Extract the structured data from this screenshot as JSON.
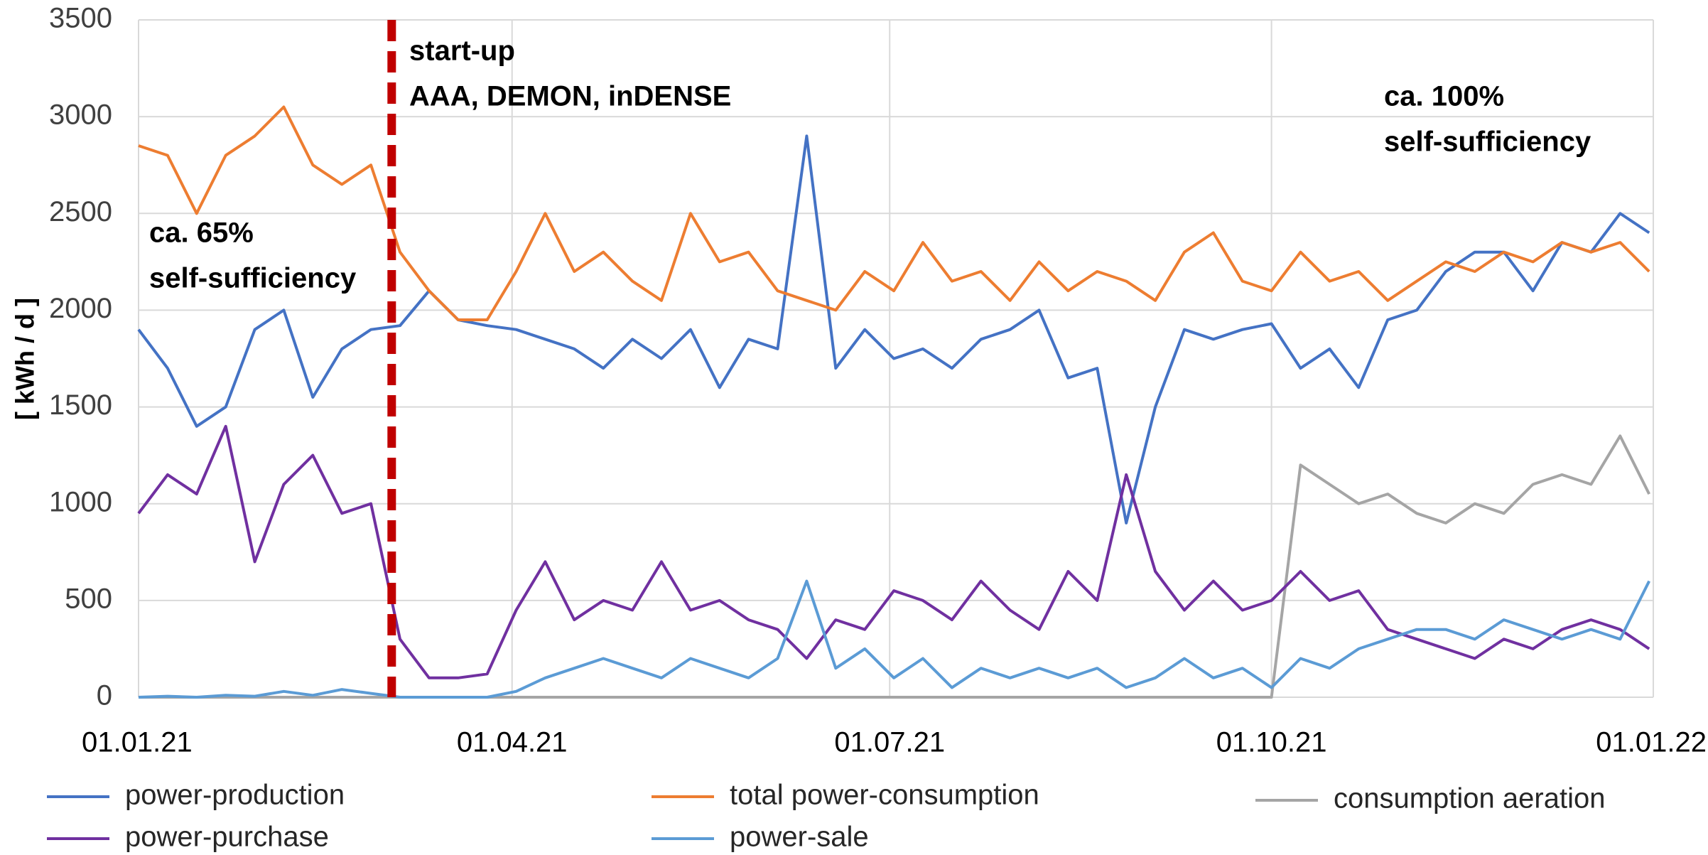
{
  "chart_data": {
    "type": "line",
    "y_label": "[ kWh / d ]",
    "annotations": [
      {
        "lines": [
          "start-up",
          "AAA, DEMON, inDENSE"
        ]
      },
      {
        "lines": [
          "ca. 65%",
          "self-sufficiency"
        ]
      },
      {
        "lines": [
          "ca. 100%",
          "self-sufficiency"
        ]
      }
    ],
    "vline": {
      "x": "03.03.21",
      "color": "#c00000"
    },
    "xlim": [
      "01.01.21",
      "01.01.22"
    ],
    "xticks": [
      "01.01.21",
      "01.04.21",
      "01.07.21",
      "01.10.21",
      "01.01.22"
    ],
    "ylim": [
      0,
      3500
    ],
    "yticks": [
      0,
      500,
      1000,
      1500,
      2000,
      2500,
      3000,
      3500
    ],
    "grid": true,
    "x": [
      "01.01.21",
      "08.01.21",
      "15.01.21",
      "22.01.21",
      "29.01.21",
      "05.02.21",
      "12.02.21",
      "19.02.21",
      "26.02.21",
      "05.03.21",
      "12.03.21",
      "19.03.21",
      "26.03.21",
      "02.04.21",
      "09.04.21",
      "16.04.21",
      "23.04.21",
      "30.04.21",
      "07.05.21",
      "14.05.21",
      "21.05.21",
      "28.05.21",
      "04.06.21",
      "11.06.21",
      "18.06.21",
      "25.06.21",
      "02.07.21",
      "09.07.21",
      "16.07.21",
      "23.07.21",
      "30.07.21",
      "06.08.21",
      "13.08.21",
      "20.08.21",
      "27.08.21",
      "03.09.21",
      "10.09.21",
      "17.09.21",
      "24.09.21",
      "01.10.21",
      "08.10.21",
      "15.10.21",
      "22.10.21",
      "29.10.21",
      "05.11.21",
      "12.11.21",
      "19.11.21",
      "26.11.21",
      "03.12.21",
      "10.12.21",
      "17.12.21",
      "24.12.21",
      "31.12.21"
    ],
    "series": [
      {
        "name": "power-production",
        "color": "#4472c4",
        "values": [
          1900,
          1700,
          1400,
          1500,
          1900,
          2000,
          1550,
          1800,
          1900,
          1920,
          2100,
          1950,
          1920,
          1900,
          1850,
          1800,
          1700,
          1850,
          1750,
          1900,
          1600,
          1850,
          1800,
          2900,
          1700,
          1900,
          1750,
          1800,
          1700,
          1850,
          1900,
          2000,
          1650,
          1700,
          900,
          1500,
          1900,
          1850,
          1900,
          1930,
          1700,
          1800,
          1600,
          1950,
          2000,
          2200,
          2300,
          2300,
          2100,
          2350,
          2300,
          2500,
          2400
        ]
      },
      {
        "name": "total power-consumption",
        "color": "#ed7d31",
        "values": [
          2850,
          2800,
          2500,
          2800,
          2900,
          3050,
          2750,
          2650,
          2750,
          2300,
          2100,
          1950,
          1950,
          2200,
          2500,
          2200,
          2300,
          2150,
          2050,
          2500,
          2250,
          2300,
          2100,
          2050,
          2000,
          2200,
          2100,
          2350,
          2150,
          2200,
          2050,
          2250,
          2100,
          2200,
          2150,
          2050,
          2300,
          2400,
          2150,
          2100,
          2300,
          2150,
          2200,
          2050,
          2150,
          2250,
          2200,
          2300,
          2250,
          2350,
          2300,
          2350,
          2200
        ]
      },
      {
        "name": "consumption aeration",
        "color": "#a5a5a5",
        "values": [
          0,
          0,
          0,
          0,
          0,
          0,
          0,
          0,
          0,
          0,
          0,
          0,
          0,
          0,
          0,
          0,
          0,
          0,
          0,
          0,
          0,
          0,
          0,
          0,
          0,
          0,
          0,
          0,
          0,
          0,
          0,
          0,
          0,
          0,
          0,
          0,
          0,
          0,
          0,
          0,
          1200,
          1100,
          1000,
          1050,
          950,
          900,
          1000,
          950,
          1100,
          1150,
          1100,
          1350,
          1050
        ]
      },
      {
        "name": "power-purchase",
        "color": "#7030a0",
        "values": [
          950,
          1150,
          1050,
          1400,
          700,
          1100,
          1250,
          950,
          1000,
          300,
          100,
          100,
          120,
          450,
          700,
          400,
          500,
          450,
          700,
          450,
          500,
          400,
          350,
          200,
          400,
          350,
          550,
          500,
          400,
          600,
          450,
          350,
          650,
          500,
          1150,
          650,
          450,
          600,
          450,
          500,
          650,
          500,
          550,
          350,
          300,
          250,
          200,
          300,
          250,
          350,
          400,
          350,
          250
        ]
      },
      {
        "name": "power-sale",
        "color": "#5b9bd5",
        "values": [
          0,
          5,
          0,
          10,
          5,
          30,
          10,
          40,
          20,
          0,
          0,
          0,
          0,
          30,
          100,
          150,
          200,
          150,
          100,
          200,
          150,
          100,
          200,
          600,
          150,
          250,
          100,
          200,
          50,
          150,
          100,
          150,
          100,
          150,
          50,
          100,
          200,
          100,
          150,
          50,
          200,
          150,
          250,
          300,
          350,
          350,
          300,
          400,
          350,
          300,
          350,
          300,
          600
        ]
      }
    ]
  }
}
